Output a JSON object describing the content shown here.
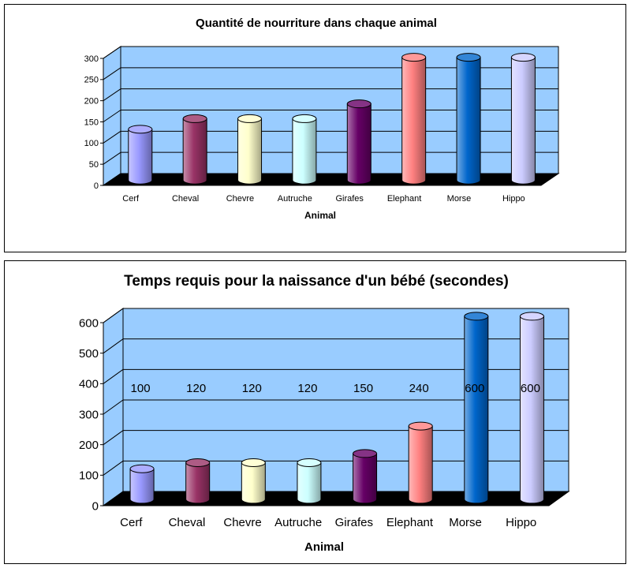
{
  "chart_data": [
    {
      "type": "bar",
      "title": "Quantité de nourriture dans chaque animal",
      "xlabel": "Animal",
      "ylabel": "",
      "categories": [
        "Cerf",
        "Cheval",
        "Chevre",
        "Autruche",
        "Girafes",
        "Elephant",
        "Morse",
        "Hippo"
      ],
      "values": [
        120,
        145,
        145,
        145,
        180,
        290,
        290,
        290
      ],
      "colors": [
        "#9999ff",
        "#993366",
        "#ffffcc",
        "#ccffff",
        "#660066",
        "#ff8080",
        "#0066cc",
        "#ccccff"
      ],
      "ylim": [
        0,
        300
      ],
      "yticks": [
        "0",
        "50",
        "100",
        "150",
        "200",
        "250",
        "300"
      ],
      "data_labels": [],
      "grid": true,
      "legend": "none",
      "plot_background": "#99ccff",
      "floor_color": "#000000"
    },
    {
      "type": "bar",
      "title": "Temps requis pour la naissance d'un bébé (secondes)",
      "xlabel": "Animal",
      "ylabel": "",
      "categories": [
        "Cerf",
        "Cheval",
        "Chevre",
        "Autruche",
        "Girafes",
        "Elephant",
        "Morse",
        "Hippo"
      ],
      "values": [
        100,
        120,
        120,
        120,
        150,
        240,
        600,
        600
      ],
      "colors": [
        "#9999ff",
        "#993366",
        "#ffffcc",
        "#ccffff",
        "#660066",
        "#ff8080",
        "#0066cc",
        "#ccccff"
      ],
      "ylim": [
        0,
        600
      ],
      "yticks": [
        "0",
        "100",
        "200",
        "300",
        "400",
        "500",
        "600"
      ],
      "data_labels": [
        "100",
        "120",
        "120",
        "120",
        "150",
        "240",
        "600",
        "600"
      ],
      "grid": true,
      "legend": "none",
      "plot_background": "#99ccff",
      "floor_color": "#000000"
    }
  ]
}
